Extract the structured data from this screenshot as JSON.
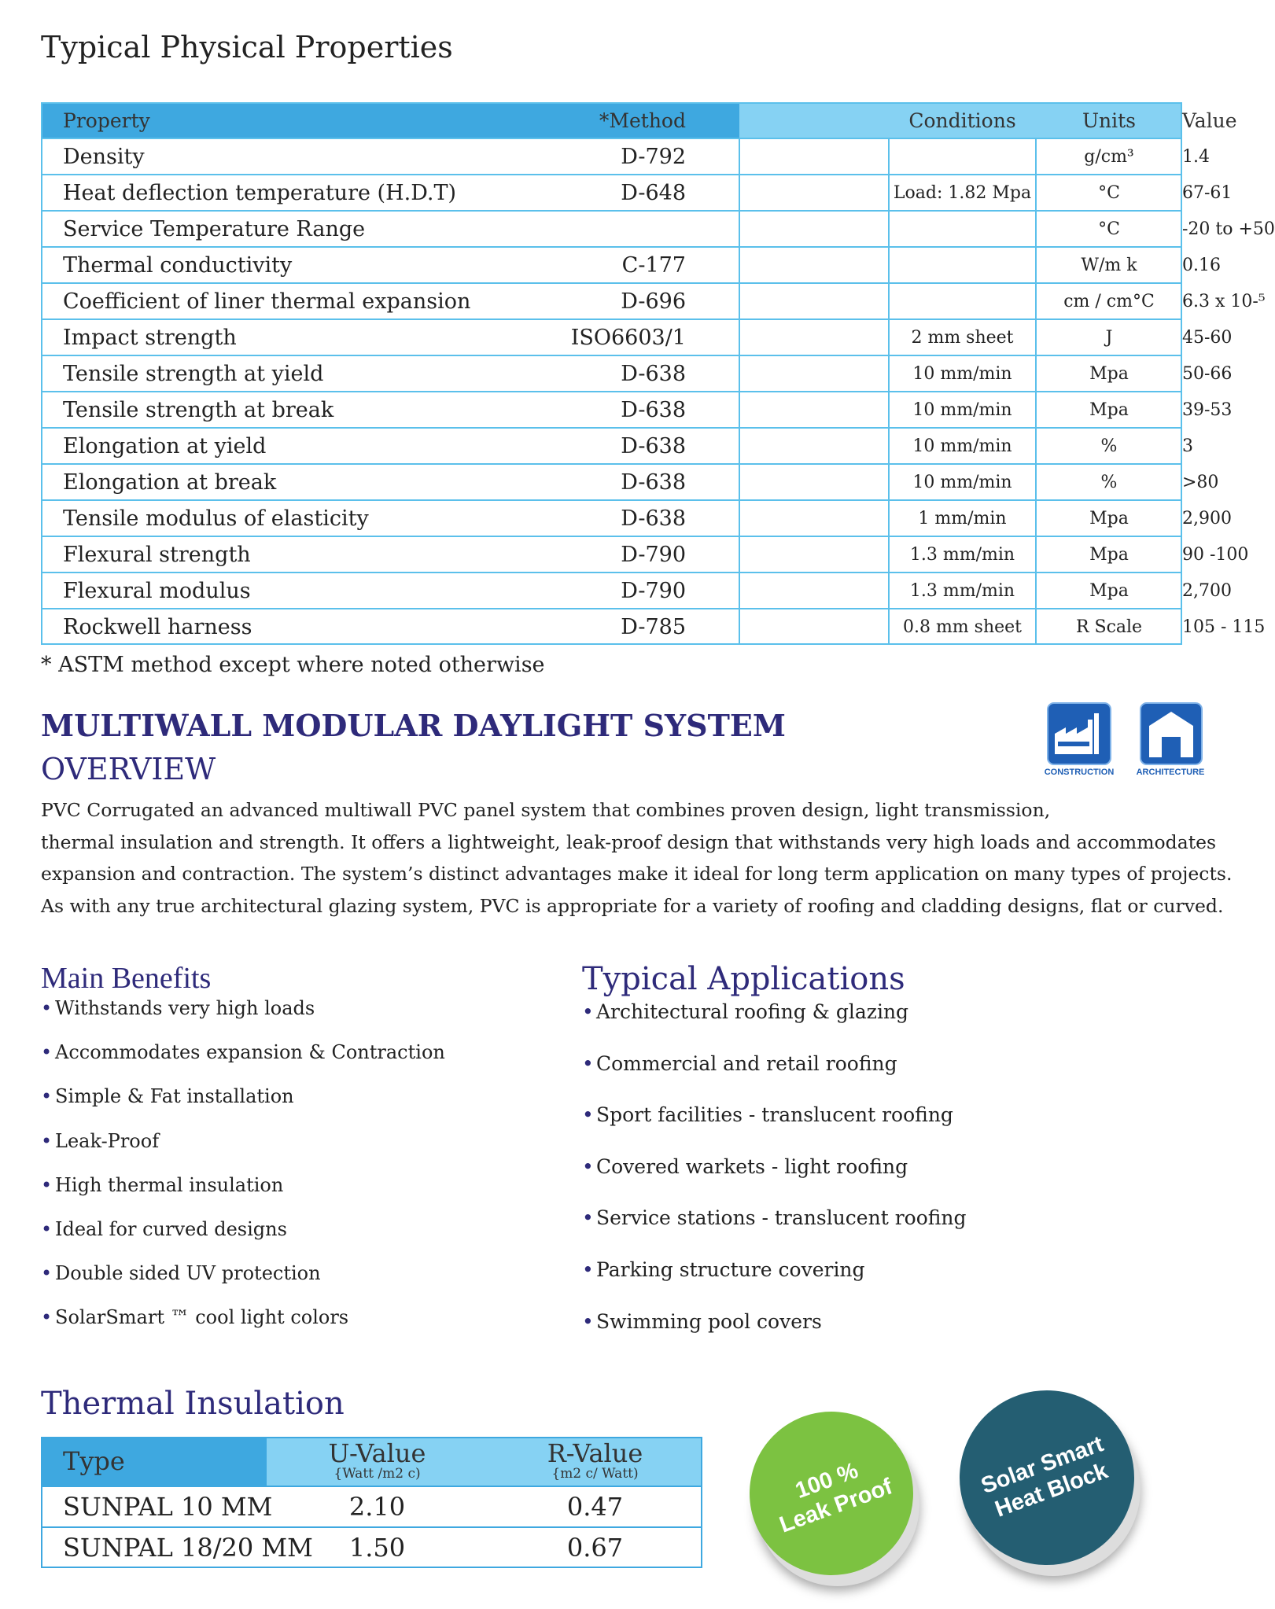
{
  "header": {
    "title": "Typical Physical Properties"
  },
  "table": {
    "columns": [
      "Property",
      "*Method",
      "Conditions",
      "Units",
      "Value"
    ],
    "rows": [
      [
        "Density",
        "D-792",
        null,
        "g/cm³",
        "1.4"
      ],
      [
        "Heat deflection temperature (H.D.T)",
        "D-648",
        "Load: 1.82 Mpa",
        "°C",
        "67-61"
      ],
      [
        "Service Temperature Range",
        null,
        null,
        "°C",
        "-20 to +50"
      ],
      [
        "Thermal conductivity",
        "C-177",
        null,
        "W/m k",
        "0.16"
      ],
      [
        "Coefficient of liner thermal expansion",
        "D-696",
        null,
        "cm / cm°C",
        "6.3 x 10-⁵"
      ],
      [
        "Impact strength",
        "ISO6603/1",
        "2  mm sheet",
        "J",
        "45-60"
      ],
      [
        "Tensile strength  at yield",
        "D-638",
        "10 mm/min",
        "Mpa",
        "50-66"
      ],
      [
        "Tensile strength at break",
        "D-638",
        "10 mm/min",
        "Mpa",
        "39-53"
      ],
      [
        "Elongation at yield",
        "D-638",
        "10 mm/min",
        "%",
        "3"
      ],
      [
        "Elongation at break",
        "D-638",
        "10 mm/min",
        "%",
        ">80"
      ],
      [
        "Tensile modulus of elasticity",
        "D-638",
        "1 mm/min",
        "Mpa",
        "2,900"
      ],
      [
        "Flexural strength",
        "D-790",
        "1.3 mm/min",
        "Mpa",
        "90 -100"
      ],
      [
        "Flexural modulus",
        "D-790",
        "1.3 mm/min",
        "Mpa",
        "2,700"
      ],
      [
        "Rockwell harness",
        "D-785",
        "0.8 mm sheet",
        "R Scale",
        "105 - 115"
      ]
    ],
    "footnote": "* ASTM method except where noted otherwise"
  },
  "overview": {
    "title": "MULTIWALL MODULAR DAYLIGHT SYSTEM",
    "subtitle": "OVERVIEW",
    "lines": [
      "PVC Corrugated an advanced multiwall PVC panel system that combines proven design, light transmission,",
      "thermal insulation and strength. It offers a lightweight, leak-proof design that withstands very high loads and accommodates",
      "expansion and contraction. The system’s distinct advantages make it ideal for long term application on many types of projects.",
      "As with any true architectural glazing system, PVC is appropriate for a variety of roofing and cladding designs, flat or curved."
    ],
    "icons": [
      "CONSTRUCTION",
      "ARCHITECTURE"
    ]
  },
  "benefits": {
    "title": "Main Benefits",
    "items": [
      "Withstands very high loads",
      "Accommodates expansion & Contraction",
      "Simple & Fat installation",
      "Leak-Proof",
      "High thermal insulation",
      "Ideal for curved designs",
      "Double sided UV protection",
      "SolarSmart ™ cool light colors"
    ]
  },
  "applications": {
    "title": "Typical Applications",
    "items": [
      "Architectural roofing & glazing",
      "Commercial and retail roofing",
      "Sport facilities - translucent roofing",
      "Covered warkets - light roofing",
      "Service stations - translucent roofing",
      "Parking structure covering",
      "Swimming pool covers"
    ]
  },
  "thermal": {
    "title": "Thermal Insulation",
    "columns": [
      {
        "name": "Type"
      },
      {
        "name": "U-Value",
        "unit": "{Watt /m2 c)"
      },
      {
        "name": "R-Value",
        "unit": "{m2 c/ Watt)"
      }
    ],
    "rows": [
      [
        "SUNPAL 10 MM",
        "2.10",
        "0.47"
      ],
      [
        "SUNPAL 18/20 MM",
        "1.50",
        "0.67"
      ]
    ]
  },
  "badges": [
    {
      "lines": [
        "100 %",
        "Leak Proof"
      ]
    },
    {
      "lines": [
        "Solar Smart",
        "Heat Block"
      ]
    }
  ]
}
